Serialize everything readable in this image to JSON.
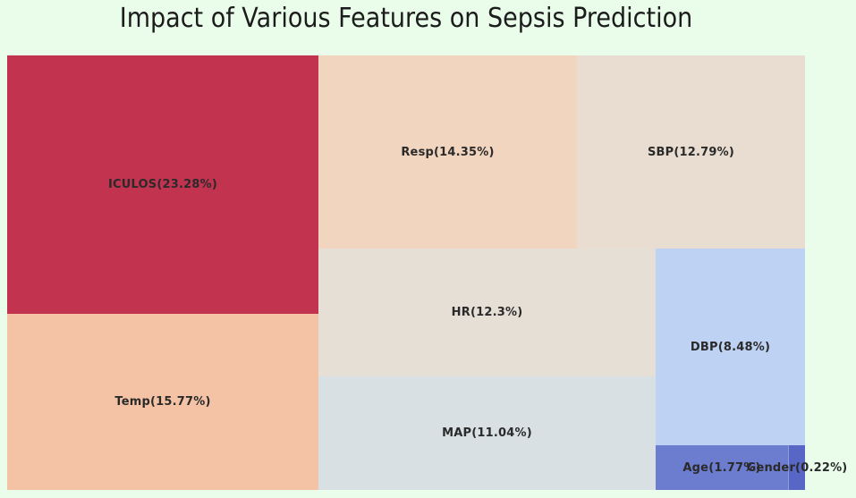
{
  "chart_data": {
    "type": "treemap",
    "title": "Impact of Various Features on Sepsis Prediction",
    "unit": "%",
    "items": [
      {
        "name": "ICULOS",
        "value": 23.28,
        "label": "ICULOS(23.28%)",
        "color": "#c23350"
      },
      {
        "name": "Temp",
        "value": 15.77,
        "label": "Temp(15.77%)",
        "color": "#f4c3a5"
      },
      {
        "name": "Resp",
        "value": 14.35,
        "label": "Resp(14.35%)",
        "color": "#f2d5bf"
      },
      {
        "name": "SBP",
        "value": 12.79,
        "label": "SBP(12.79%)",
        "color": "#e8ddd0"
      },
      {
        "name": "HR",
        "value": 12.3,
        "label": "HR(12.3%)",
        "color": "#e5dfd5"
      },
      {
        "name": "MAP",
        "value": 11.04,
        "label": "MAP(11.04%)",
        "color": "#d9e0e4"
      },
      {
        "name": "DBP",
        "value": 8.48,
        "label": "DBP(8.48%)",
        "color": "#bed3f3"
      },
      {
        "name": "Age",
        "value": 1.77,
        "label": "Age(1.77%)",
        "color": "#6c7ccf"
      },
      {
        "name": "Gender",
        "value": 0.22,
        "label": "Gender(0.22%)",
        "color": "#5866c5"
      }
    ],
    "colors": {
      "background": "#eafdeb",
      "title_text": "#1c1c1c",
      "label_text": "#2a2a2a"
    },
    "legend": "none",
    "axes": "off"
  }
}
